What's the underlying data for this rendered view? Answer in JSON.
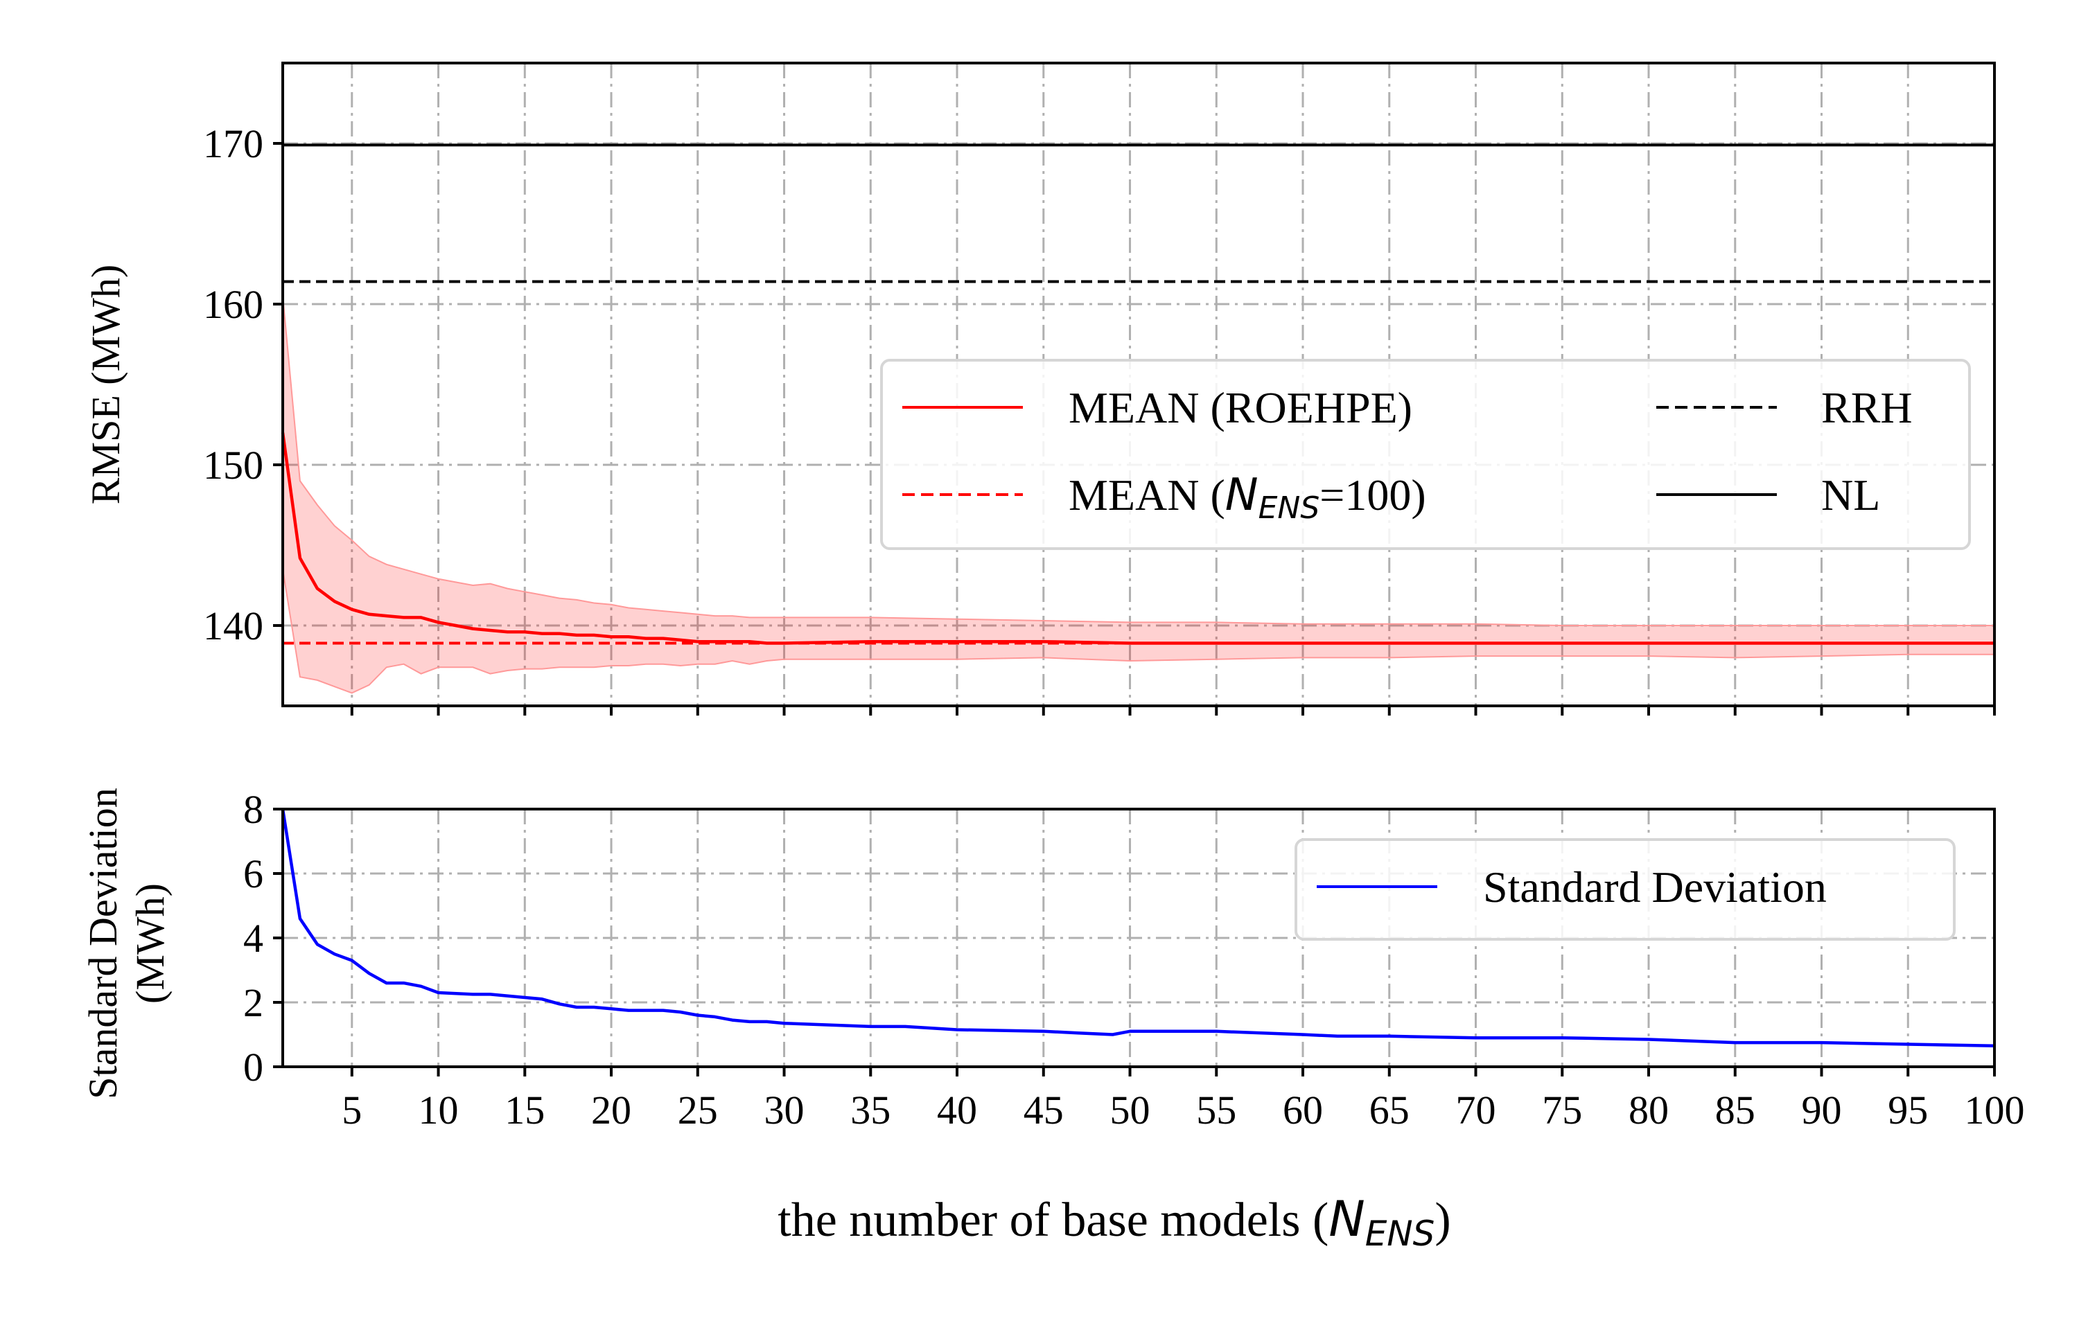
{
  "chart_data": [
    {
      "type": "line",
      "ylabel": "RMSE (MWh)",
      "xlim": [
        1,
        100
      ],
      "ylim": [
        135,
        175
      ],
      "yticks": [
        140,
        150,
        160,
        170
      ],
      "grid": true,
      "legend_placement": "center-right",
      "legend_ncol": 2,
      "series": [
        {
          "name": "MEAN (ROEHPE)",
          "color": "#ff0000",
          "style": "solid",
          "x": [
            1,
            2,
            3,
            4,
            5,
            6,
            7,
            8,
            9,
            10,
            11,
            12,
            13,
            14,
            15,
            16,
            17,
            18,
            19,
            20,
            21,
            22,
            23,
            24,
            25,
            26,
            27,
            28,
            29,
            30,
            35,
            40,
            45,
            50,
            55,
            60,
            65,
            70,
            75,
            80,
            85,
            90,
            95,
            100
          ],
          "values": [
            152.0,
            144.2,
            142.3,
            141.5,
            141.0,
            140.7,
            140.6,
            140.5,
            140.5,
            140.2,
            140.0,
            139.8,
            139.7,
            139.6,
            139.6,
            139.5,
            139.5,
            139.4,
            139.4,
            139.3,
            139.3,
            139.2,
            139.2,
            139.1,
            139.0,
            139.0,
            139.0,
            139.0,
            138.9,
            138.9,
            139.0,
            139.0,
            139.0,
            138.9,
            138.9,
            138.9,
            138.9,
            138.9,
            138.9,
            138.9,
            138.9,
            138.9,
            138.9,
            138.9
          ],
          "band_upper": [
            160.5,
            149.0,
            147.5,
            146.2,
            145.3,
            144.3,
            143.8,
            143.5,
            143.2,
            142.9,
            142.7,
            142.5,
            142.6,
            142.3,
            142.1,
            141.9,
            141.7,
            141.6,
            141.4,
            141.3,
            141.1,
            141.0,
            140.9,
            140.8,
            140.7,
            140.6,
            140.6,
            140.5,
            140.5,
            140.5,
            140.5,
            140.4,
            140.3,
            140.2,
            140.2,
            140.1,
            140.1,
            140.1,
            140.0,
            140.0,
            140.0,
            140.0,
            140.0,
            140.0
          ],
          "band_lower": [
            143.5,
            136.8,
            136.6,
            136.2,
            135.8,
            136.3,
            137.4,
            137.6,
            137.0,
            137.4,
            137.4,
            137.4,
            137.0,
            137.2,
            137.3,
            137.3,
            137.4,
            137.4,
            137.4,
            137.5,
            137.5,
            137.6,
            137.6,
            137.5,
            137.6,
            137.6,
            137.8,
            137.6,
            137.8,
            137.9,
            137.9,
            137.9,
            138.0,
            137.8,
            137.9,
            138.0,
            138.0,
            138.1,
            138.1,
            138.1,
            138.0,
            138.1,
            138.2,
            138.2
          ]
        },
        {
          "name": "MEAN (N_ENS=100)",
          "color": "#ff0000",
          "style": "dashed",
          "constant": 138.9
        },
        {
          "name": "RRH",
          "color": "#000000",
          "style": "dashed",
          "constant": 161.4
        },
        {
          "name": "NL",
          "color": "#000000",
          "style": "solid",
          "constant": 169.9
        }
      ]
    },
    {
      "type": "line",
      "ylabel": "Standard Deviation (MWh)",
      "xlabel": "the number of base models (N_ENS)",
      "xlim": [
        1,
        100
      ],
      "ylim": [
        0,
        8
      ],
      "yticks": [
        0,
        2,
        4,
        6,
        8
      ],
      "xticks": [
        5,
        10,
        15,
        20,
        25,
        30,
        35,
        40,
        45,
        50,
        55,
        60,
        65,
        70,
        75,
        80,
        85,
        90,
        95,
        100
      ],
      "grid": true,
      "legend_placement": "upper-right",
      "series": [
        {
          "name": "Standard Deviation",
          "color": "#0000ff",
          "style": "solid",
          "x": [
            1,
            2,
            3,
            4,
            5,
            6,
            7,
            8,
            9,
            10,
            12,
            13,
            15,
            16,
            17,
            18,
            19,
            20,
            21,
            22,
            23,
            24,
            25,
            26,
            27,
            28,
            29,
            30,
            35,
            37,
            40,
            45,
            47,
            49,
            50,
            55,
            60,
            62,
            65,
            70,
            75,
            80,
            85,
            90,
            95,
            100
          ],
          "values": [
            8.0,
            4.6,
            3.8,
            3.5,
            3.3,
            2.9,
            2.6,
            2.6,
            2.5,
            2.3,
            2.25,
            2.25,
            2.15,
            2.1,
            1.95,
            1.85,
            1.85,
            1.8,
            1.75,
            1.75,
            1.75,
            1.7,
            1.6,
            1.55,
            1.45,
            1.4,
            1.4,
            1.35,
            1.25,
            1.25,
            1.15,
            1.1,
            1.05,
            1.0,
            1.1,
            1.1,
            1.0,
            0.95,
            0.95,
            0.9,
            0.9,
            0.85,
            0.75,
            0.75,
            0.7,
            0.65
          ]
        }
      ]
    }
  ],
  "labels": {
    "top_ylabel": "RMSE (MWh)",
    "bottom_ylabel_line1": "Standard Deviation",
    "bottom_ylabel_line2": "(MWh)",
    "xlabel_text": "the number of base models (",
    "xlabel_symbol": "N",
    "xlabel_sub": "ENS",
    "xlabel_close": ")",
    "legend_mean": "MEAN (ROEHPE)",
    "legend_mean100_pre": "MEAN (",
    "legend_mean100_symbol": "N",
    "legend_mean100_sub": "ENS",
    "legend_mean100_post": "=100)",
    "legend_rrh": "RRH",
    "legend_nl": "NL",
    "legend_std": "Standard Deviation"
  }
}
